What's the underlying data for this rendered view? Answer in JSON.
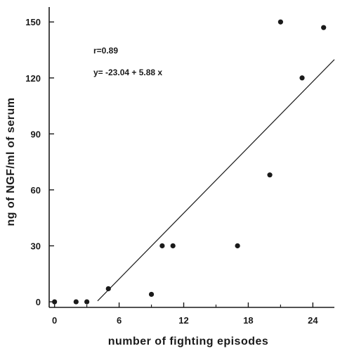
{
  "chart_data": {
    "type": "scatter",
    "xlabel": "number of fighting episodes",
    "ylabel": "ng of NGF/ml of serum",
    "xlim": [
      -0.5,
      26
    ],
    "ylim": [
      -3,
      158
    ],
    "x_ticks": [
      0,
      6,
      12,
      18,
      24
    ],
    "x_tick_labels": [
      "0",
      "6",
      "12",
      "18",
      "24"
    ],
    "y_ticks": [
      0,
      30,
      60,
      90,
      120,
      150
    ],
    "y_tick_labels": [
      "0",
      "30",
      "60",
      "90",
      "120",
      "150"
    ],
    "x_minor_ticks": [
      3,
      9,
      15,
      21
    ],
    "annotations": [
      "r=0.89",
      "y= -23.04 + 5.88 x"
    ],
    "points": [
      {
        "x": 0,
        "y": 0
      },
      {
        "x": 2,
        "y": 0
      },
      {
        "x": 3,
        "y": 0
      },
      {
        "x": 5,
        "y": 7
      },
      {
        "x": 9,
        "y": 4
      },
      {
        "x": 10,
        "y": 30
      },
      {
        "x": 11,
        "y": 30
      },
      {
        "x": 17,
        "y": 30
      },
      {
        "x": 20,
        "y": 68
      },
      {
        "x": 21,
        "y": 150
      },
      {
        "x": 23,
        "y": 120
      },
      {
        "x": 25,
        "y": 147
      }
    ],
    "fit_line": {
      "intercept": -23.04,
      "slope": 5.88,
      "x_start": 4.0,
      "x_end": 26.0
    },
    "grid": false,
    "colors": {
      "ink": "#1a1a1a",
      "background": "#ffffff"
    }
  }
}
